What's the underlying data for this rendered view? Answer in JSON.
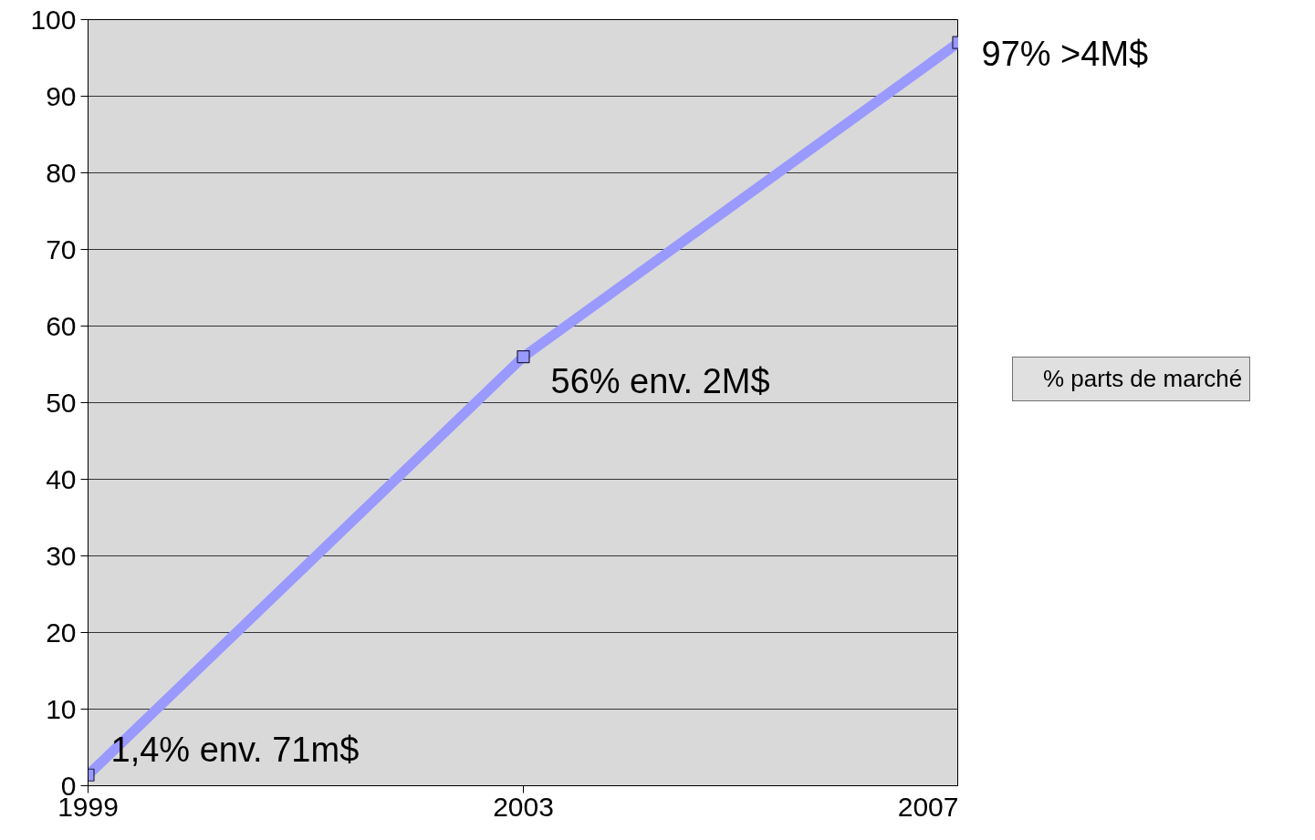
{
  "chart_data": {
    "type": "line",
    "x": [
      1999,
      2003,
      2007
    ],
    "xlim": [
      1999,
      2007
    ],
    "xticks": [
      1999,
      2003,
      2007
    ],
    "ylim": [
      0,
      100
    ],
    "yticks": [
      0,
      10,
      20,
      30,
      40,
      50,
      60,
      70,
      80,
      90,
      100
    ],
    "grid": "y",
    "legend": "right",
    "marker": "square",
    "line_style": "solid",
    "series": [
      {
        "name": "% parts de marché",
        "color": "#9999ff",
        "values": [
          1.4,
          56,
          97
        ],
        "value_labels": [
          "1,4%  env. 71m$",
          "56%   env. 2M$",
          "97%   >4M$"
        ]
      }
    ]
  }
}
